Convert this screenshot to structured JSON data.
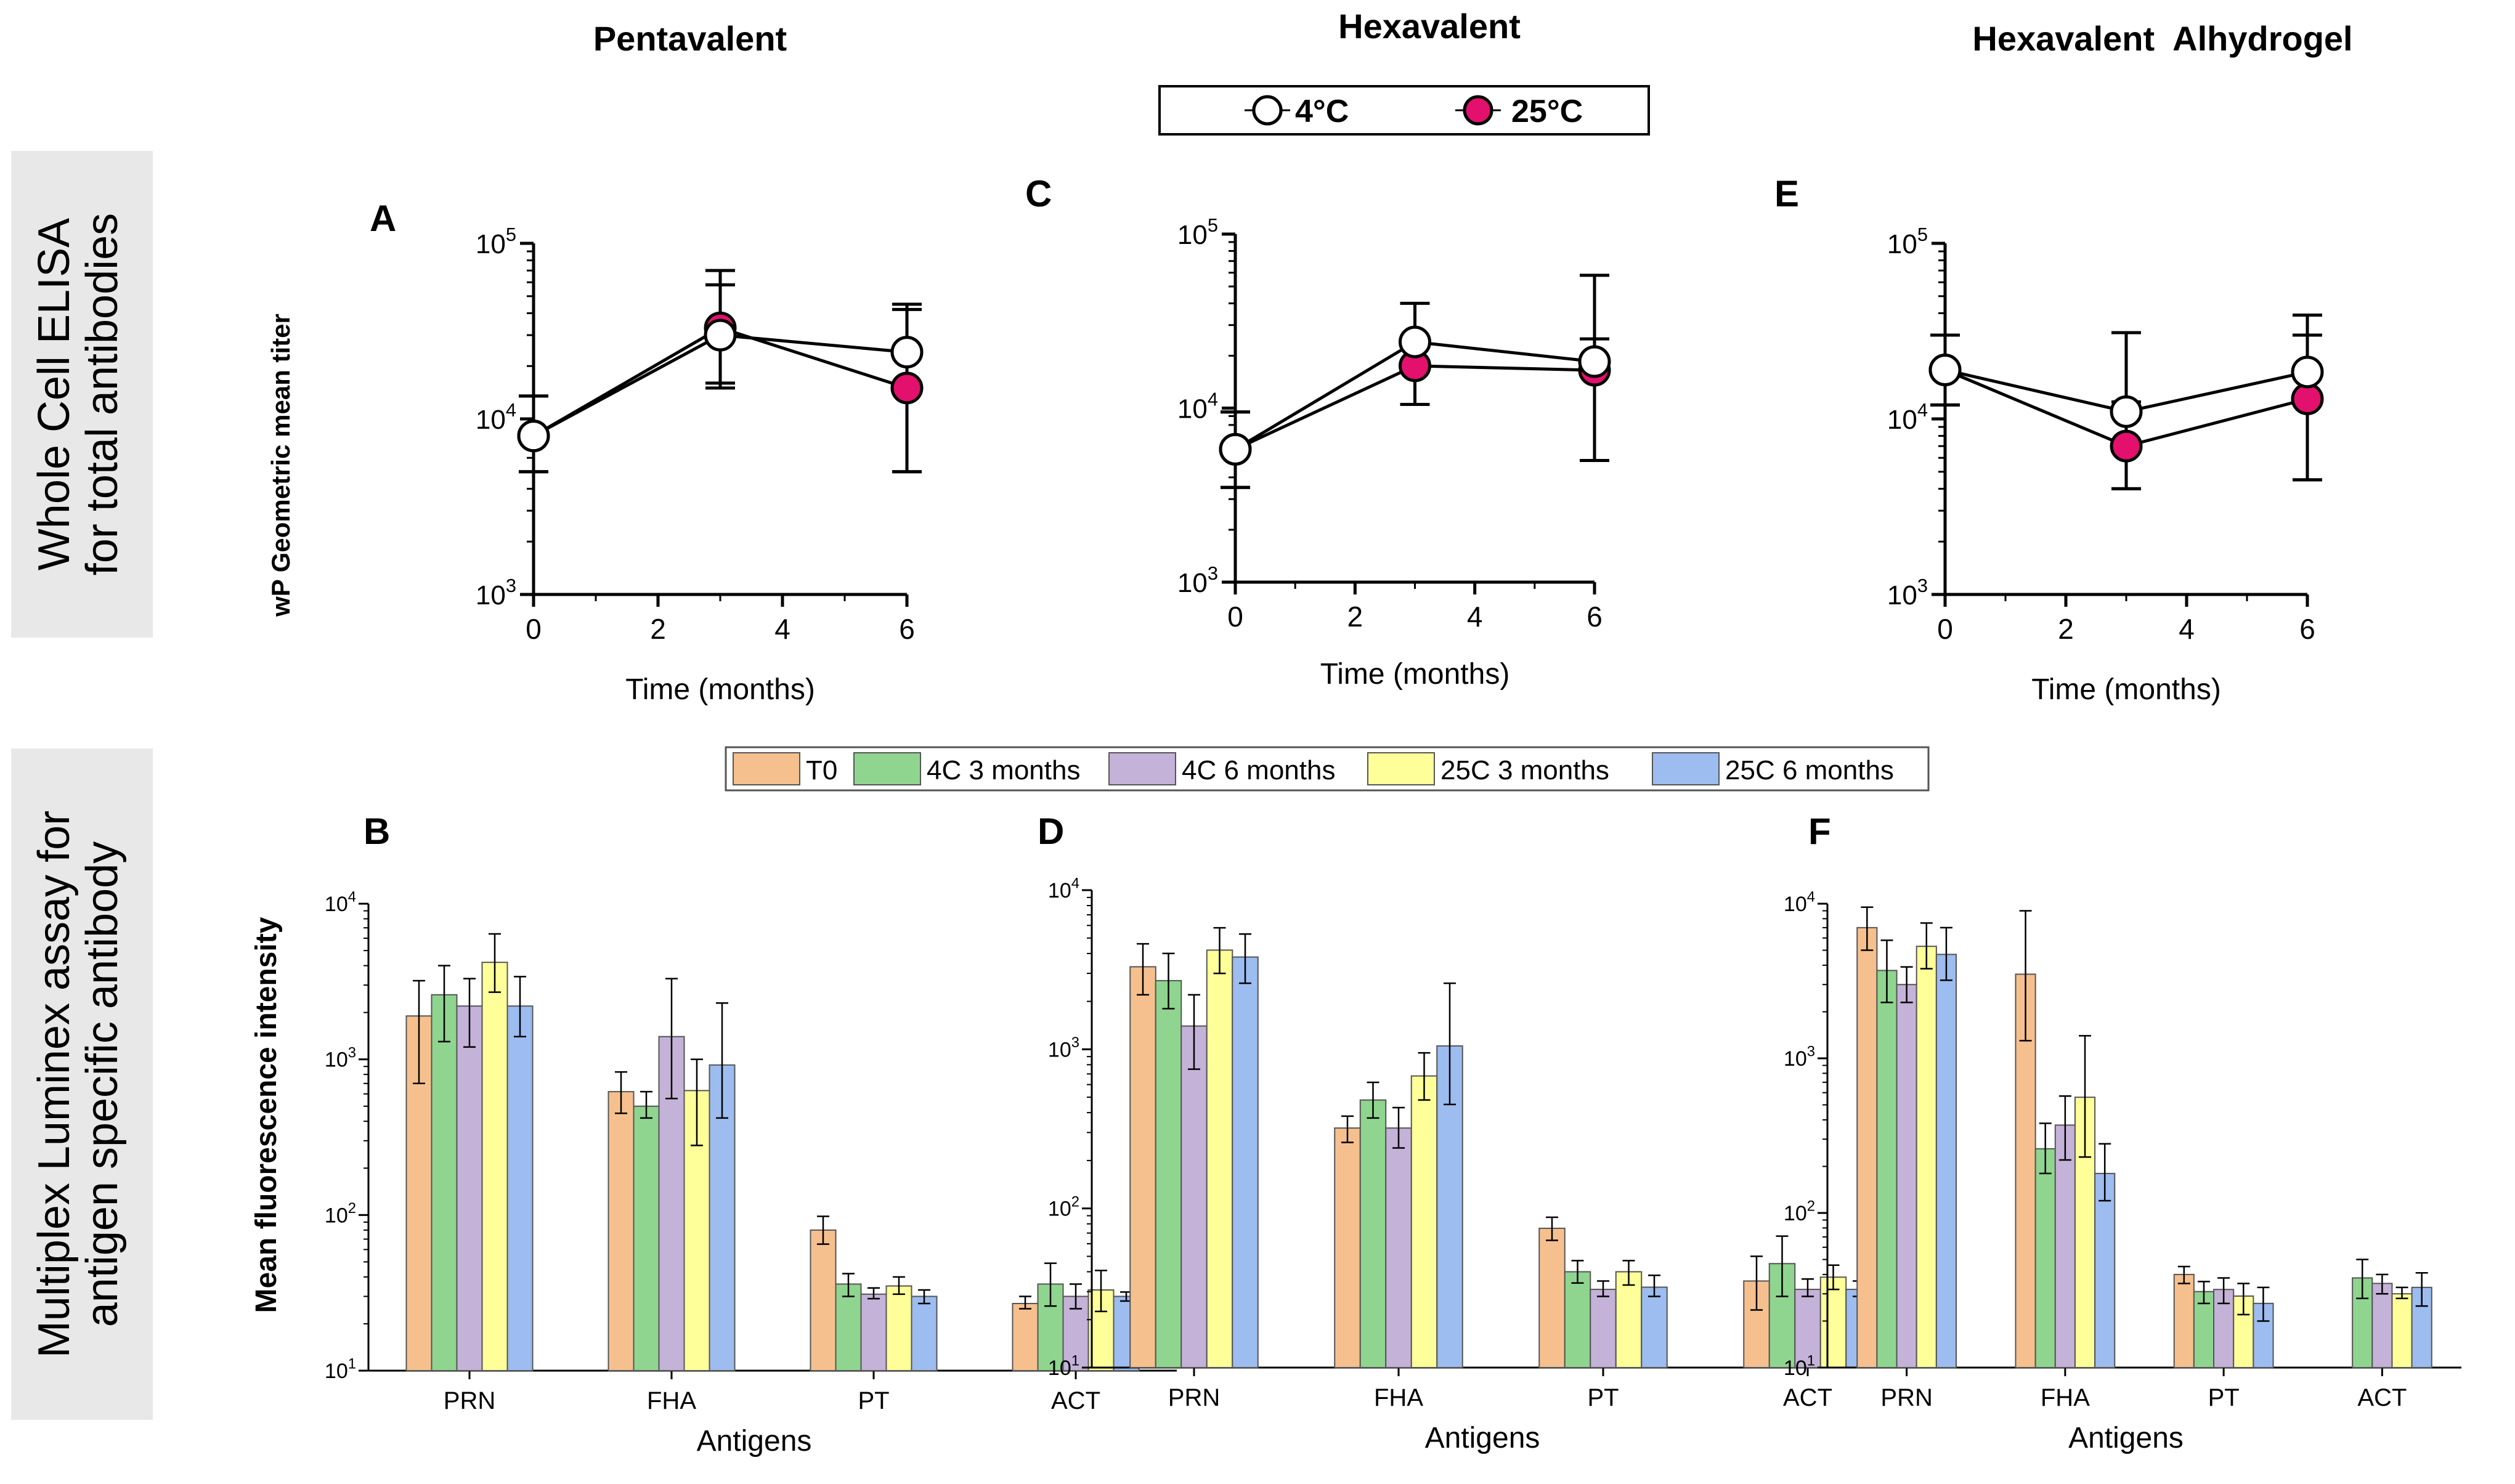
{
  "column_titles": [
    "Pentavalent",
    "Hexavalent",
    "Hexavalent  Alhydrogel"
  ],
  "row_labels": {
    "top": [
      "Whole Cell ELISA",
      "for total antibodies"
    ],
    "bottom": [
      "Multiplex Luminex assay for",
      "antigen specific antibody"
    ]
  },
  "legend_top": {
    "items": [
      {
        "label": "4°C",
        "color": "#ffffff"
      },
      {
        "label": "25°C",
        "color": "#e3106e"
      }
    ]
  },
  "legend_bottom": {
    "items": [
      {
        "label": "T0",
        "color": "#f6c08e"
      },
      {
        "label": "4C 3 months",
        "color": "#8fd58f"
      },
      {
        "label": "4C 6 months",
        "color": "#c4b2d8"
      },
      {
        "label": "25C 3 months",
        "color": "#ffff99"
      },
      {
        "label": "25C 6 months",
        "color": "#9dbcf0"
      }
    ]
  },
  "axis_text": {
    "top_ylabel": "wP Geometric mean titer",
    "top_xlabel": "Time (months)",
    "bottom_ylabel": "Mean fluorescence intensity",
    "bottom_xlabel": "Antigens"
  },
  "chart_data": [
    {
      "panel": "A",
      "type": "line",
      "title": "Pentavalent",
      "xlabel": "Time (months)",
      "ylabel": "wP Geometric mean titer",
      "xlim": [
        0,
        6
      ],
      "xticks": [
        "0",
        "2",
        "4",
        "6"
      ],
      "yscale": "log",
      "ylim": [
        1000,
        100000
      ],
      "yticks": [
        {
          "base": "10",
          "exp": "3"
        },
        {
          "base": "10",
          "exp": "4"
        },
        {
          "base": "10",
          "exp": "5"
        }
      ],
      "series": [
        {
          "name": "4°C",
          "x": [
            0,
            3,
            6
          ],
          "y": [
            8000,
            30000,
            24000
          ],
          "err_lo": [
            5000,
            16000,
            5000
          ],
          "err_hi": [
            13500,
            70000,
            45000
          ]
        },
        {
          "name": "25°C",
          "x": [
            0,
            3,
            6
          ],
          "y": [
            8000,
            33000,
            15000
          ],
          "err_lo": [
            5000,
            15000,
            5000
          ],
          "err_hi": [
            13500,
            58000,
            42000
          ]
        }
      ]
    },
    {
      "panel": "B",
      "type": "bar",
      "xlabel": "Antigens",
      "ylabel": "Mean fluorescence intensity",
      "categories": [
        "PRN",
        "FHA",
        "PT",
        "ACT"
      ],
      "yscale": "log",
      "ylim": [
        10,
        10000
      ],
      "yticks": [
        {
          "base": "10",
          "exp": "1"
        },
        {
          "base": "10",
          "exp": "2"
        },
        {
          "base": "10",
          "exp": "3"
        },
        {
          "base": "10",
          "exp": "4"
        }
      ],
      "series": [
        {
          "name": "T0",
          "values": [
            1900,
            620,
            80,
            27
          ],
          "err_lo": [
            700,
            450,
            65,
            25
          ],
          "err_hi": [
            3200,
            830,
            98,
            30
          ]
        },
        {
          "name": "4C 3 months",
          "values": [
            2600,
            500,
            36,
            36
          ],
          "err_lo": [
            1300,
            420,
            30,
            26
          ],
          "err_hi": [
            4000,
            620,
            42,
            49
          ]
        },
        {
          "name": "4C 6 months",
          "values": [
            2200,
            1400,
            31,
            30
          ],
          "err_lo": [
            1200,
            560,
            29,
            25
          ],
          "err_hi": [
            3300,
            3300,
            34,
            36
          ]
        },
        {
          "name": "25C 3 months",
          "values": [
            4200,
            630,
            35,
            33
          ],
          "err_lo": [
            2700,
            280,
            31,
            24
          ],
          "err_hi": [
            6400,
            1000,
            40,
            44
          ]
        },
        {
          "name": "25C 6 months",
          "values": [
            2200,
            920,
            30,
            30
          ],
          "err_lo": [
            1400,
            420,
            27,
            28
          ],
          "err_hi": [
            3400,
            2300,
            33,
            32
          ]
        }
      ]
    },
    {
      "panel": "C",
      "type": "line",
      "title": "Hexavalent",
      "xlabel": "Time (months)",
      "ylabel": "wP Geometric mean titer",
      "xlim": [
        0,
        6
      ],
      "xticks": [
        "0",
        "2",
        "4",
        "6"
      ],
      "yscale": "log",
      "ylim": [
        1000,
        100000
      ],
      "yticks": [
        {
          "base": "10",
          "exp": "3"
        },
        {
          "base": "10",
          "exp": "4"
        },
        {
          "base": "10",
          "exp": "5"
        }
      ],
      "series": [
        {
          "name": "4°C",
          "x": [
            0,
            3,
            6
          ],
          "y": [
            5800,
            24000,
            18500
          ],
          "err_lo": [
            3500,
            17000,
            5000
          ],
          "err_hi": [
            9500,
            40000,
            58000
          ]
        },
        {
          "name": "25°C",
          "x": [
            0,
            3,
            6
          ],
          "y": [
            5800,
            17500,
            16500
          ],
          "err_lo": [
            3500,
            10500,
            5000
          ],
          "err_hi": [
            9500,
            24000,
            25000
          ]
        }
      ]
    },
    {
      "panel": "D",
      "type": "bar",
      "xlabel": "Antigens",
      "ylabel": "Mean fluorescence intensity",
      "categories": [
        "PRN",
        "FHA",
        "PT",
        "ACT"
      ],
      "yscale": "log",
      "ylim": [
        10,
        10000
      ],
      "yticks": [
        {
          "base": "10",
          "exp": "1"
        },
        {
          "base": "10",
          "exp": "2"
        },
        {
          "base": "10",
          "exp": "3"
        },
        {
          "base": "10",
          "exp": "4"
        }
      ],
      "series": [
        {
          "name": "T0",
          "values": [
            3300,
            320,
            75,
            35
          ],
          "err_lo": [
            2200,
            260,
            63,
            23
          ],
          "err_hi": [
            4600,
            380,
            88,
            50
          ]
        },
        {
          "name": "4C 3 months",
          "values": [
            2700,
            480,
            40,
            45
          ],
          "err_lo": [
            1800,
            370,
            34,
            28
          ],
          "err_hi": [
            4000,
            620,
            47,
            67
          ]
        },
        {
          "name": "4C 6 months",
          "values": [
            1400,
            320,
            31,
            31
          ],
          "err_lo": [
            750,
            240,
            28,
            28
          ],
          "err_hi": [
            2200,
            430,
            35,
            36
          ]
        },
        {
          "name": "25C 3 months",
          "values": [
            4200,
            680,
            40,
            37
          ],
          "err_lo": [
            3000,
            480,
            33,
            31
          ],
          "err_hi": [
            5800,
            950,
            47,
            44
          ]
        },
        {
          "name": "25C 6 months",
          "values": [
            3800,
            1050,
            32,
            31
          ],
          "err_lo": [
            2600,
            450,
            28,
            28
          ],
          "err_hi": [
            5300,
            2600,
            38,
            35
          ]
        }
      ]
    },
    {
      "panel": "E",
      "type": "line",
      "title": "Hexavalent  Alhydrogel",
      "xlabel": "Time (months)",
      "ylabel": "wP Geometric mean titer",
      "xlim": [
        0,
        6
      ],
      "xticks": [
        "0",
        "2",
        "4",
        "6"
      ],
      "yscale": "log",
      "ylim": [
        1000,
        100000
      ],
      "yticks": [
        {
          "base": "10",
          "exp": "3"
        },
        {
          "base": "10",
          "exp": "4"
        },
        {
          "base": "10",
          "exp": "5"
        }
      ],
      "series": [
        {
          "name": "4°C",
          "x": [
            0,
            3,
            6
          ],
          "y": [
            19000,
            11000,
            18500
          ],
          "err_lo": [
            12000,
            4000,
            4500
          ],
          "err_hi": [
            30000,
            31000,
            39000
          ]
        },
        {
          "name": "25°C",
          "x": [
            0,
            3,
            6
          ],
          "y": [
            19000,
            7000,
            13000
          ],
          "err_lo": [
            12000,
            4000,
            4500
          ],
          "err_hi": [
            30000,
            12500,
            30000
          ]
        }
      ]
    },
    {
      "panel": "F",
      "type": "bar",
      "xlabel": "Antigens",
      "ylabel": "Mean fluorescence intensity",
      "categories": [
        "PRN",
        "FHA",
        "PT",
        "ACT"
      ],
      "yscale": "log",
      "ylim": [
        10,
        10000
      ],
      "yticks": [
        {
          "base": "10",
          "exp": "1"
        },
        {
          "base": "10",
          "exp": "2"
        },
        {
          "base": "10",
          "exp": "3"
        },
        {
          "base": "10",
          "exp": "4"
        }
      ],
      "series": [
        {
          "name": "T0",
          "values": [
            7000,
            3500,
            40,
            0
          ],
          "err_lo": [
            5000,
            1300,
            35,
            0
          ],
          "err_hi": [
            9500,
            9000,
            45,
            0
          ]
        },
        {
          "name": "4C 3 months",
          "values": [
            3700,
            260,
            31,
            38
          ],
          "err_lo": [
            2300,
            180,
            26,
            28
          ],
          "err_hi": [
            5800,
            380,
            36,
            50
          ]
        },
        {
          "name": "4C 6 months",
          "values": [
            3000,
            370,
            32,
            35
          ],
          "err_lo": [
            2300,
            220,
            26,
            30
          ],
          "err_hi": [
            3900,
            570,
            38,
            40
          ]
        },
        {
          "name": "25C 3 months",
          "values": [
            5300,
            560,
            29,
            30
          ],
          "err_lo": [
            3800,
            230,
            22,
            28
          ],
          "err_hi": [
            7500,
            1400,
            35,
            33
          ]
        },
        {
          "name": "25C 6 months",
          "values": [
            4700,
            180,
            26,
            33
          ],
          "err_lo": [
            3200,
            120,
            20,
            25
          ],
          "err_hi": [
            7000,
            280,
            33,
            41
          ]
        }
      ]
    }
  ]
}
